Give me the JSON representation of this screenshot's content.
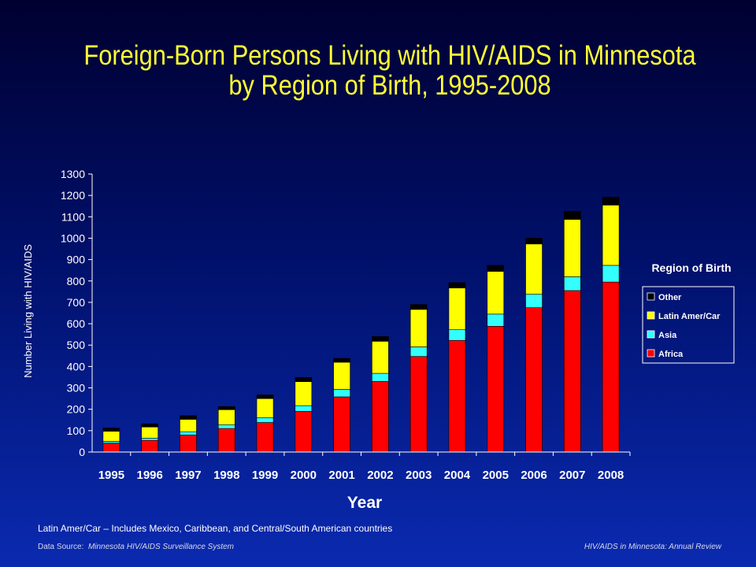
{
  "title": {
    "line1": "Foreign-Born Persons Living with HIV/AIDS in Minnesota",
    "line2": "by Region of Birth, 1995-2008"
  },
  "chart_data": {
    "type": "bar",
    "stacked": true,
    "title": "Foreign-Born Persons Living with HIV/AIDS in Minnesota by Region of Birth, 1995-2008",
    "xlabel": "Year",
    "ylabel": "Number Living with HIV/AIDS",
    "ylim": [
      0,
      1300
    ],
    "yticks": [
      0,
      100,
      200,
      300,
      400,
      500,
      600,
      700,
      800,
      900,
      1000,
      1100,
      1200,
      1300
    ],
    "categories": [
      "1995",
      "1996",
      "1997",
      "1998",
      "1999",
      "2000",
      "2001",
      "2002",
      "2003",
      "2004",
      "2005",
      "2006",
      "2007",
      "2008"
    ],
    "series": [
      {
        "name": "Africa",
        "color": "#ff0000",
        "values": [
          42,
          55,
          80,
          110,
          138,
          190,
          258,
          330,
          447,
          522,
          588,
          675,
          755,
          795
        ]
      },
      {
        "name": "Asia",
        "color": "#33ffff",
        "values": [
          8,
          10,
          15,
          18,
          22,
          27,
          35,
          38,
          45,
          50,
          57,
          63,
          65,
          78
        ]
      },
      {
        "name": "Latin Amer/Car",
        "color": "#ffff00",
        "values": [
          47,
          52,
          58,
          70,
          90,
          112,
          127,
          150,
          175,
          195,
          200,
          235,
          268,
          282
        ]
      },
      {
        "name": "Other",
        "color": "#000000",
        "values": [
          15,
          15,
          17,
          15,
          17,
          20,
          18,
          22,
          23,
          25,
          28,
          27,
          38,
          37
        ]
      }
    ],
    "legend": {
      "title": "Region of Birth",
      "placement": "right",
      "order": [
        "Other",
        "Latin Amer/Car",
        "Asia",
        "Africa"
      ]
    },
    "grid": false
  },
  "footnote": "Latin Amer/Car – Includes Mexico, Caribbean, and Central/South American countries",
  "source": {
    "label": "Data Source:",
    "value": "Minnesota HIV/AIDS Surveillance System"
  },
  "report": "HIV/AIDS in Minnesota: Annual Review"
}
